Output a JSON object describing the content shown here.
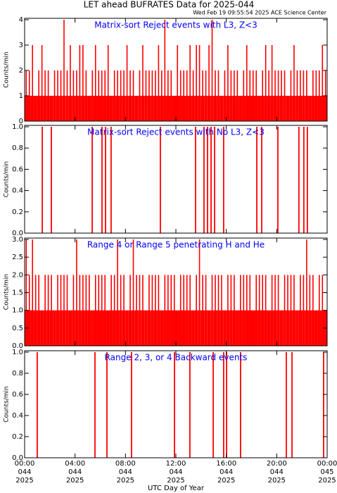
{
  "title": "LET ahead BUFRATES Data for 2025-044",
  "subtitle": "Wed Feb 19 09:55:54 2025 ACE Science Center",
  "chart_data": [
    {
      "type": "bar",
      "title": "Matrix-sort Reject events with L3, Z<3",
      "ylabel": "Counts/min",
      "color": "#ff0000",
      "xlim": [
        0,
        24
      ],
      "ylim": [
        0,
        4
      ],
      "yticks": [
        0,
        1,
        2,
        3,
        4
      ],
      "bin_width": 0.25,
      "x": [
        0,
        0.25,
        0.5,
        0.75,
        1,
        1.25,
        1.5,
        1.75,
        2,
        2.25,
        2.5,
        2.75,
        3,
        3.25,
        3.5,
        3.75,
        4,
        4.25,
        4.5,
        4.75,
        5,
        5.25,
        5.5,
        5.75,
        6,
        6.25,
        6.5,
        6.75,
        7,
        7.25,
        7.5,
        7.75,
        8,
        8.25,
        8.5,
        8.75,
        9,
        9.25,
        9.5,
        9.75,
        10,
        10.25,
        10.5,
        10.75,
        11,
        11.25,
        11.5,
        11.75,
        12,
        12.25,
        12.5,
        12.75,
        13,
        13.25,
        13.5,
        13.75,
        14,
        14.25,
        14.5,
        14.75,
        15,
        15.25,
        15.5,
        15.75,
        16,
        16.25,
        16.5,
        16.75,
        17,
        17.25,
        17.5,
        17.75,
        18,
        18.25,
        18.5,
        18.75,
        19,
        19.25,
        19.5,
        19.75,
        20,
        20.25,
        20.5,
        20.75,
        21,
        21.25,
        21.5,
        21.75,
        22,
        22.25,
        22.5,
        22.75,
        23,
        23.25,
        23.5,
        23.75
      ],
      "values": [
        2,
        2,
        3,
        1,
        2,
        3,
        2,
        2,
        1,
        2,
        2,
        2,
        4,
        2,
        3,
        2,
        2,
        3,
        3,
        2,
        1,
        2,
        3,
        2,
        2,
        2,
        3,
        1,
        2,
        2,
        2,
        2,
        3,
        2,
        2,
        1,
        2,
        3,
        2,
        2,
        2,
        2,
        3,
        2,
        4,
        2,
        2,
        1,
        3,
        2,
        2,
        2,
        3,
        2,
        3,
        3,
        2,
        2,
        3,
        4,
        2,
        2,
        1,
        2,
        3,
        2,
        2,
        2,
        1,
        2,
        3,
        2,
        2,
        2,
        1,
        2,
        3,
        2,
        3,
        2,
        2,
        2,
        2,
        1,
        2,
        3,
        2,
        2,
        2,
        2,
        1,
        2,
        2,
        2,
        3,
        2
      ]
    },
    {
      "type": "spike",
      "title": "Matrix-sort Reject events with No L3, Z<3",
      "ylabel": "Counts/min",
      "color": "#ff0000",
      "xlim": [
        0,
        24
      ],
      "ylim": [
        0,
        1
      ],
      "yticks": [
        {
          "value": 0,
          "label": "0.0"
        },
        0.2,
        0.4,
        0.6,
        0.8,
        {
          "value": 1,
          "label": "1.0"
        }
      ],
      "x": [
        1.4,
        2.12,
        5.36,
        6.14,
        6.42,
        6.86,
        10.77,
        13.56,
        14.23,
        14.51,
        14.79,
        15.07,
        15.79,
        18.42,
        18.81,
        20.09,
        21.76,
        22.15,
        22.43
      ],
      "values": [
        1,
        1,
        1,
        1,
        1,
        1,
        1,
        1,
        1,
        1,
        1,
        1,
        1,
        1,
        1,
        1,
        1,
        1,
        1
      ]
    },
    {
      "type": "bar",
      "title": "Range 4 or Range 5 penetrating H and He",
      "ylabel": "Counts/min",
      "color": "#ff0000",
      "xlim": [
        0,
        24
      ],
      "ylim": [
        0,
        3
      ],
      "bin_width": 0.25,
      "yticks": [
        {
          "value": 0,
          "label": "0.0"
        },
        0.5,
        {
          "value": 1,
          "label": "1.0"
        },
        1.5,
        {
          "value": 2,
          "label": "2.0"
        },
        2.5,
        {
          "value": 3,
          "label": "3.0"
        }
      ],
      "x": [
        0,
        0.25,
        0.5,
        0.75,
        1,
        1.25,
        1.5,
        1.75,
        2,
        2.25,
        2.5,
        2.75,
        3,
        3.25,
        3.5,
        3.75,
        4,
        4.25,
        4.5,
        4.75,
        5,
        5.25,
        5.5,
        5.75,
        6,
        6.25,
        6.5,
        6.75,
        7,
        7.25,
        7.5,
        7.75,
        8,
        8.25,
        8.5,
        8.75,
        9,
        9.25,
        9.5,
        9.75,
        10,
        10.25,
        10.5,
        10.75,
        11,
        11.25,
        11.5,
        11.75,
        12,
        12.25,
        12.5,
        12.75,
        13,
        13.25,
        13.5,
        13.75,
        14,
        14.25,
        14.5,
        14.75,
        15,
        15.25,
        15.5,
        15.75,
        16,
        16.25,
        16.5,
        16.75,
        17,
        17.25,
        17.5,
        17.75,
        18,
        18.25,
        18.5,
        18.75,
        19,
        19.25,
        19.5,
        19.75,
        20,
        20.25,
        20.5,
        20.75,
        21,
        21.25,
        21.5,
        21.75,
        22,
        22.25,
        22.5,
        22.75,
        23,
        23.25,
        23.5,
        23.75
      ],
      "values": [
        3,
        2,
        3,
        2,
        2,
        1,
        2,
        2,
        2,
        1,
        2,
        2,
        2,
        2,
        1,
        2,
        3,
        2,
        2,
        2,
        2,
        1,
        2,
        2,
        2,
        2,
        1,
        2,
        2,
        3,
        2,
        2,
        1,
        2,
        3,
        2,
        2,
        2,
        1,
        2,
        2,
        2,
        2,
        1,
        2,
        2,
        2,
        2,
        1,
        2,
        2,
        2,
        2,
        1,
        2,
        3,
        2,
        2,
        1,
        2,
        2,
        2,
        2,
        1,
        2,
        2,
        2,
        1,
        2,
        2,
        2,
        2,
        1,
        2,
        2,
        2,
        2,
        1,
        2,
        2,
        2,
        1,
        2,
        2,
        2,
        2,
        1,
        2,
        2,
        3,
        2,
        2,
        1,
        2,
        2,
        1
      ]
    },
    {
      "type": "spike",
      "title": "Range 2, 3, or 4 Backward events",
      "ylabel": "Counts/min",
      "color": "#ff0000",
      "xlim": [
        0,
        24
      ],
      "ylim": [
        0,
        1
      ],
      "yticks": [
        {
          "value": 0,
          "label": "0.0"
        },
        0.2,
        0.4,
        0.6,
        0.8,
        {
          "value": 1,
          "label": "1.0"
        }
      ],
      "x": [
        1.0,
        5.58,
        6.53,
        8.48,
        11.89,
        13.11,
        14.96,
        15.79,
        16.02,
        17.13,
        20.76,
        21.21,
        23.72
      ],
      "values": [
        1,
        1,
        1,
        1,
        1,
        1,
        1,
        1,
        1,
        1,
        1,
        1,
        1
      ],
      "xlabel": "UTC Day of Year",
      "xticks": [
        {
          "value": 0,
          "label": [
            "00:00",
            "044",
            "2025"
          ]
        },
        {
          "value": 4,
          "label": [
            "04:00",
            "044",
            "2025"
          ]
        },
        {
          "value": 8,
          "label": [
            "08:00",
            "044",
            "2025"
          ]
        },
        {
          "value": 12,
          "label": [
            "12:00",
            "044",
            "2025"
          ]
        },
        {
          "value": 16,
          "label": [
            "16:00",
            "044",
            "2025"
          ]
        },
        {
          "value": 20,
          "label": [
            "20:00",
            "044",
            "2025"
          ]
        },
        {
          "value": 24,
          "label": [
            "00:00",
            "045",
            "2025"
          ]
        }
      ]
    }
  ]
}
